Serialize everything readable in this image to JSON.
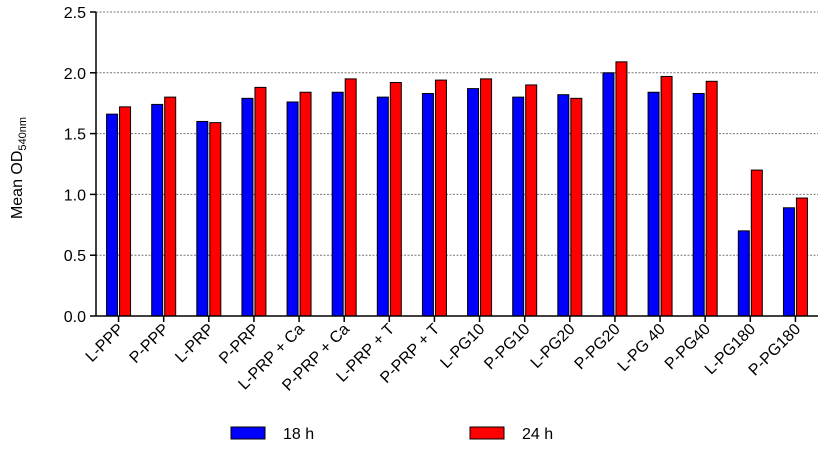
{
  "chart_data": {
    "type": "bar",
    "ylabel": "Mean OD",
    "ylabel_sub": "540nm",
    "ylim": [
      0,
      2.5
    ],
    "yticks": [
      0.0,
      0.5,
      1.0,
      1.5,
      2.0,
      2.5
    ],
    "ytick_labels": [
      "0.0",
      "0.5",
      "1.0",
      "1.5",
      "2.0",
      "2.5"
    ],
    "grid": "horizontal dashed",
    "legend_position": "bottom",
    "categories": [
      "L-PPP",
      "P-PPP",
      "L-PRP",
      "P-PRP",
      "L-PRP + Ca",
      "P-PRP + Ca",
      "L-PRP + T",
      "P-PRP + T",
      "L-PG10",
      "P-PG10",
      "L-PG20",
      "P-PG20",
      "L-PG 40",
      "P-PG40",
      "L-PG180",
      "P-PG180"
    ],
    "series": [
      {
        "name": "18 h",
        "color": "#0000ff",
        "values": [
          1.66,
          1.74,
          1.6,
          1.79,
          1.76,
          1.84,
          1.8,
          1.83,
          1.87,
          1.8,
          1.82,
          2.0,
          1.84,
          1.83,
          0.7,
          0.89
        ]
      },
      {
        "name": "24 h",
        "color": "#ff0000",
        "values": [
          1.72,
          1.8,
          1.59,
          1.88,
          1.84,
          1.95,
          1.92,
          1.94,
          1.95,
          1.9,
          1.79,
          2.09,
          1.97,
          1.93,
          1.2,
          0.97
        ]
      }
    ]
  }
}
